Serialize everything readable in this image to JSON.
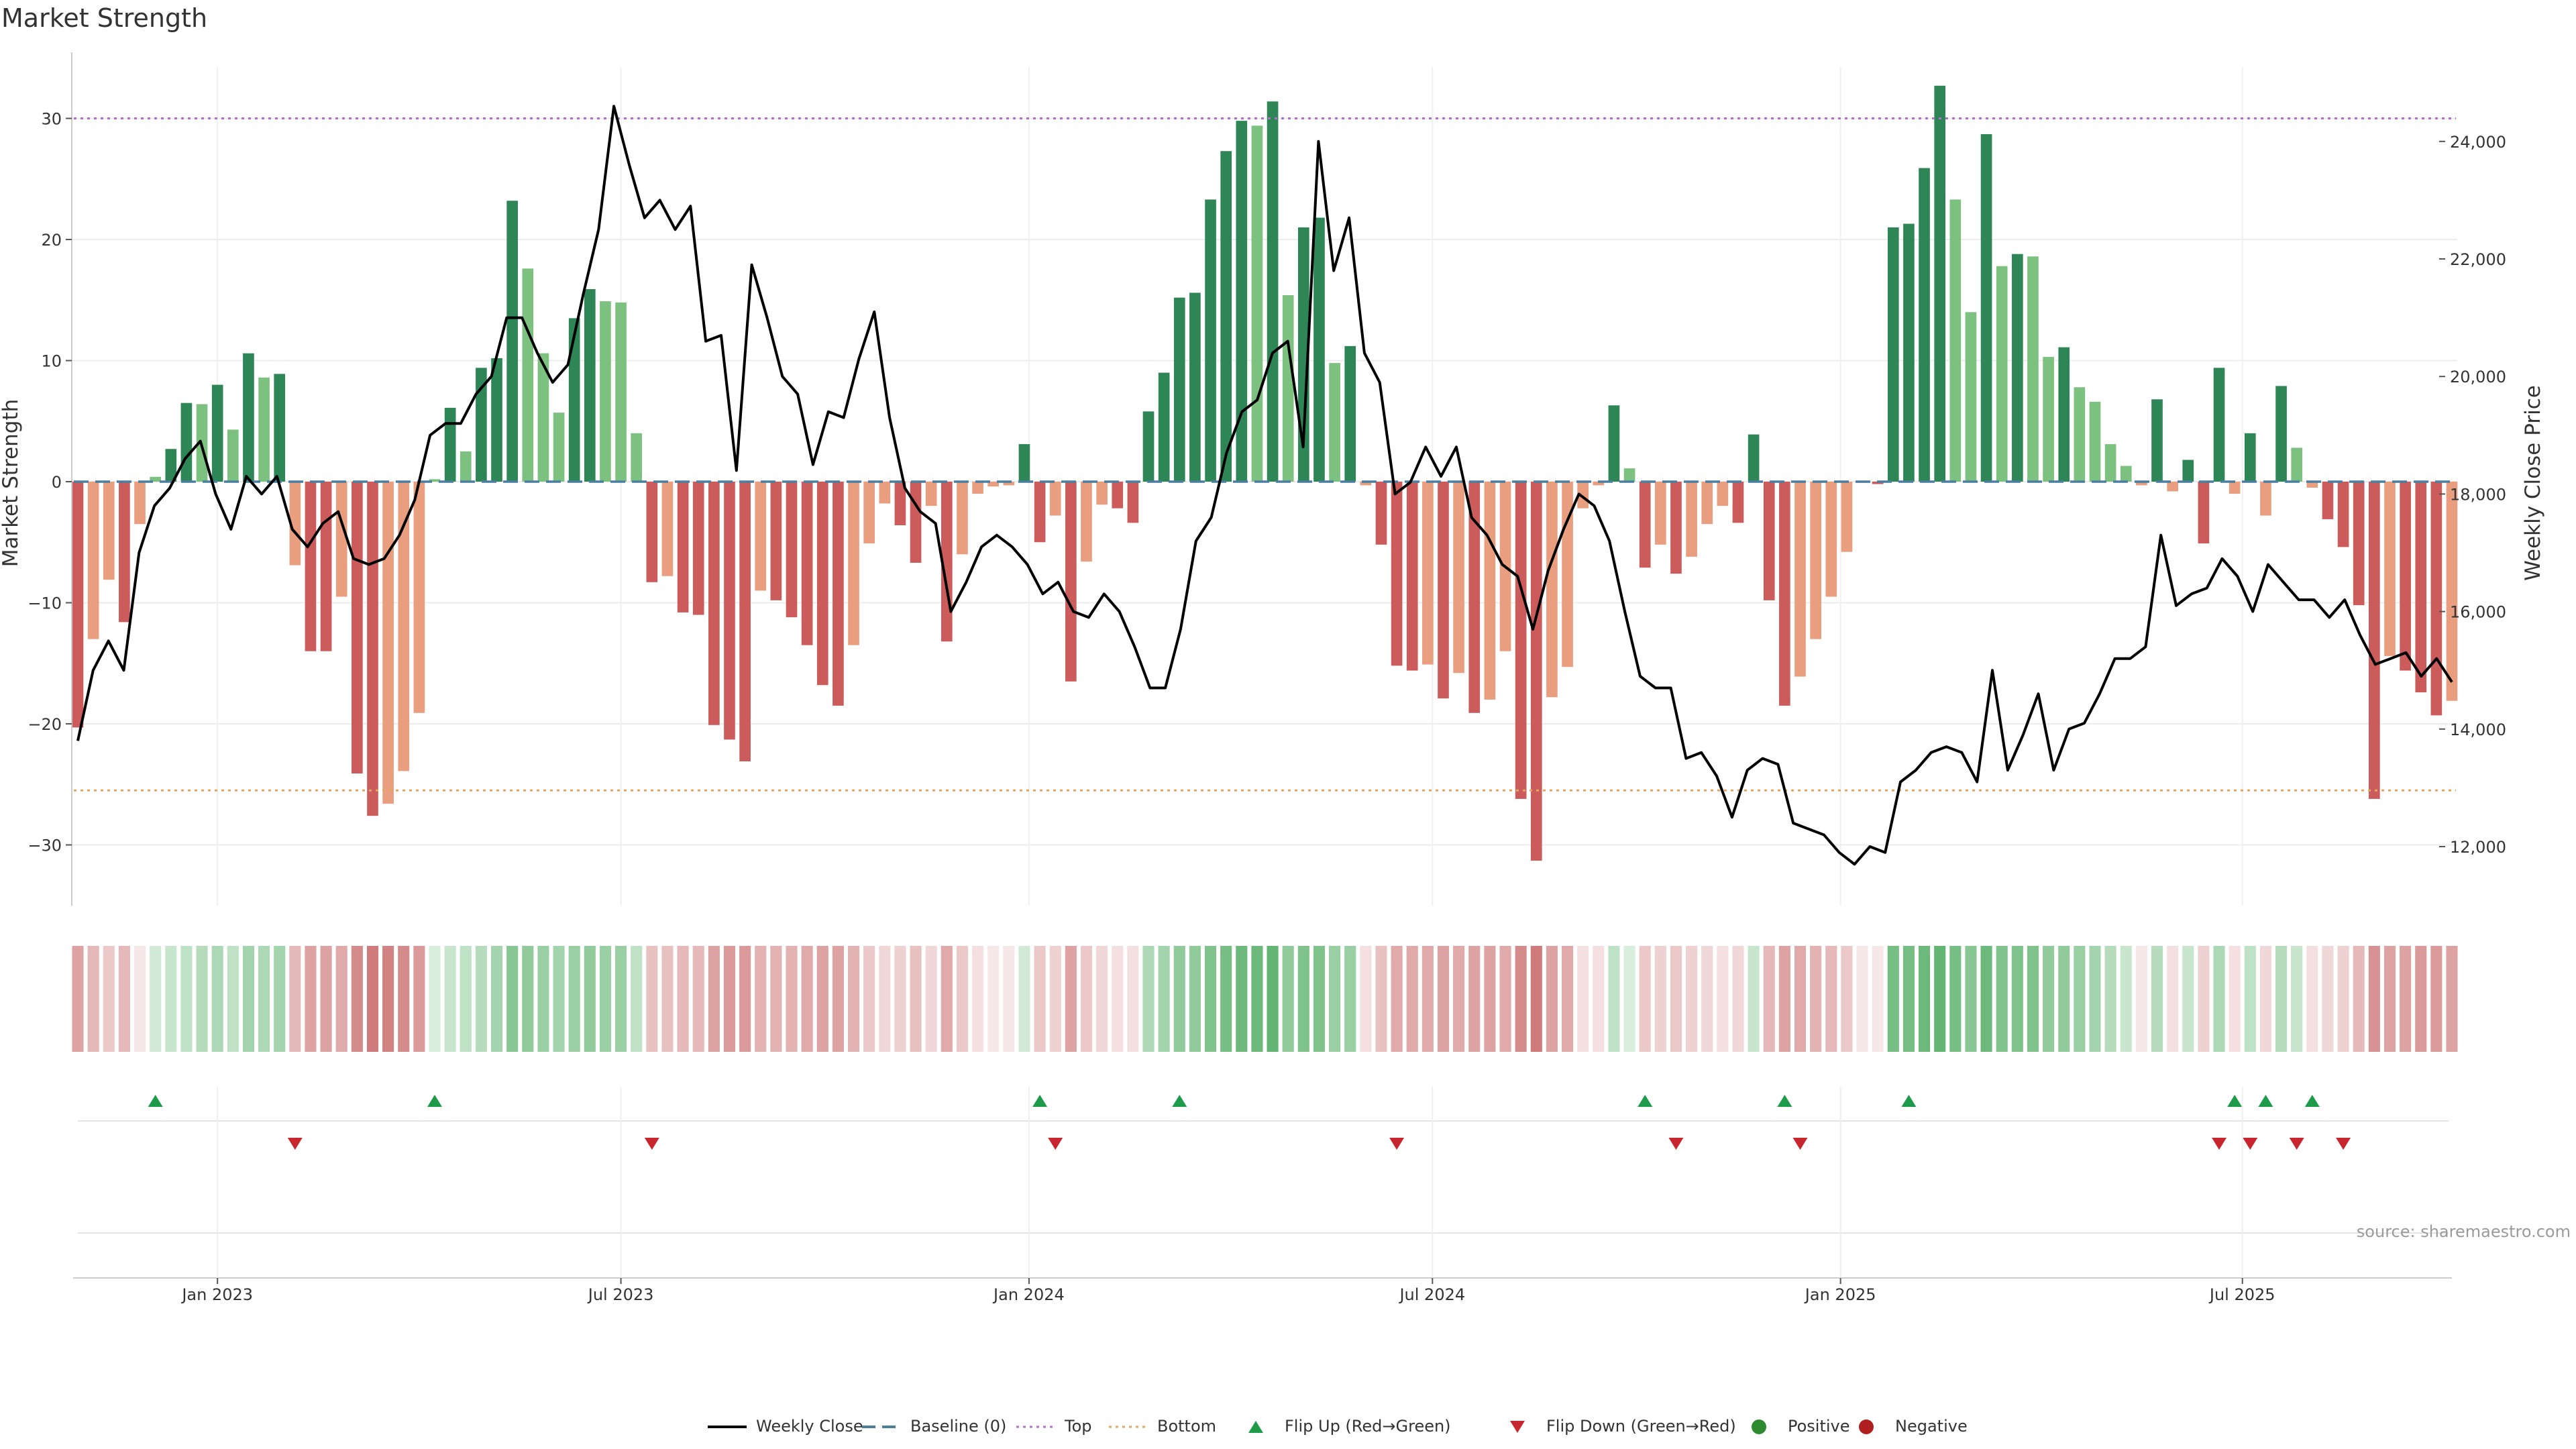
{
  "chart_data": {
    "type": "bar",
    "title": "Market Strength",
    "ylabel_left": "Market Strength",
    "ylabel_right": "Weekly Close Price",
    "source": "source: sharemaestro.com",
    "left_ylim": [
      -35,
      35
    ],
    "left_ticks": [
      30,
      20,
      10,
      0,
      -10,
      -20,
      -30
    ],
    "left_tick_labels": [
      "30",
      "20",
      "10",
      "0",
      "−10",
      "−20",
      "−30"
    ],
    "right_ylim": [
      11000,
      25000
    ],
    "right_ticks": [
      12000,
      14000,
      16000,
      18000,
      20000,
      22000,
      24000
    ],
    "right_tick_labels": [
      "12,000",
      "14,000",
      "16,000",
      "18,000",
      "20,000",
      "22,000",
      "24,000"
    ],
    "top_level": 30,
    "bottom_level": -25.5,
    "x_ticks": [
      {
        "label": "Jan 2023",
        "week": 9
      },
      {
        "label": "Jul 2023",
        "week": 35
      },
      {
        "label": "Jan 2024",
        "week": 61.3
      },
      {
        "label": "Jul 2024",
        "week": 87.3
      },
      {
        "label": "Jan 2025",
        "week": 113.6
      },
      {
        "label": "Jul 2025",
        "week": 139.5
      }
    ],
    "strength": [
      -20.3,
      -13,
      -8.1,
      -11.6,
      -3.5,
      0.4,
      2.7,
      6.5,
      6.4,
      8,
      4.3,
      10.6,
      8.6,
      8.9,
      -6.9,
      -14,
      -14,
      -9.5,
      -24.1,
      -27.6,
      -26.6,
      -23.9,
      -19.1,
      0.2,
      6.1,
      2.5,
      9.4,
      10.2,
      23.2,
      17.6,
      10.6,
      5.7,
      13.5,
      15.9,
      14.9,
      14.8,
      4,
      -8.3,
      -7.8,
      -10.8,
      -11,
      -20.1,
      -21.3,
      -23.1,
      -9,
      -9.8,
      -11.2,
      -13.5,
      -16.8,
      -18.5,
      -13.5,
      -5.1,
      -1.8,
      -3.6,
      -6.7,
      -2,
      -13.2,
      -6,
      -1,
      -0.4,
      -0.3,
      3.1,
      -5,
      -2.8,
      -16.5,
      -6.6,
      -1.9,
      -2.2,
      -3.4,
      5.8,
      9,
      15.2,
      15.6,
      23.3,
      27.3,
      29.8,
      29.4,
      31.4,
      15.4,
      21,
      21.8,
      9.8,
      11.2,
      -0.3,
      -5.2,
      -15.2,
      -15.6,
      -15.1,
      -17.9,
      -15.8,
      -19.1,
      -18,
      -14,
      -26.2,
      -31.3,
      -17.8,
      -15.3,
      -2.2,
      -0.3,
      6.3,
      1.1,
      -7.1,
      -5.2,
      -7.6,
      -6.2,
      -3.5,
      -2,
      -3.4,
      3.9,
      -9.8,
      -18.5,
      -16.1,
      -13,
      -9.5,
      -5.8,
      -0.1,
      -0.2,
      21,
      21.3,
      25.9,
      32.7,
      23.3,
      14,
      28.7,
      17.8,
      18.8,
      18.6,
      10.3,
      11.1,
      7.8,
      6.6,
      3.1,
      1.3,
      -0.3,
      6.8,
      -0.8,
      1.8,
      -5.1,
      9.4,
      -1,
      4,
      -2.8,
      7.9,
      2.8,
      -0.5,
      -3.1,
      -5.4,
      -10.2,
      -26.2,
      -14.4,
      -15.6,
      -17.4,
      -19.3,
      -18.1
    ],
    "weekly_close": [
      13800,
      15000,
      15500,
      15000,
      17000,
      17800,
      18100,
      18600,
      18900,
      18000,
      17400,
      18300,
      18000,
      18300,
      17400,
      17100,
      17500,
      17700,
      16900,
      16800,
      16900,
      17300,
      17900,
      19000,
      19200,
      19200,
      19700,
      20000,
      21000,
      21000,
      20400,
      19900,
      20200,
      21400,
      22500,
      24600,
      23600,
      22700,
      23000,
      22500,
      22900,
      20600,
      20700,
      18400,
      21900,
      21000,
      20000,
      19700,
      18500,
      19400,
      19300,
      20300,
      21100,
      19300,
      18100,
      17700,
      17500,
      16000,
      16500,
      17100,
      17300,
      17100,
      16800,
      16300,
      16500,
      16000,
      15900,
      16300,
      16000,
      15400,
      14700,
      14700,
      15700,
      17200,
      17600,
      18700,
      19400,
      19600,
      20400,
      20600,
      18800,
      24000,
      21800,
      22700,
      20400,
      19900,
      18000,
      18200,
      18800,
      18300,
      18800,
      17600,
      17300,
      16800,
      16600,
      15700,
      16700,
      17400,
      18000,
      17800,
      17200,
      16000,
      14900,
      14700,
      14700,
      13500,
      13600,
      13200,
      12500,
      13300,
      13500,
      13400,
      12400,
      12300,
      12200,
      11900,
      11700,
      12000,
      11900,
      13100,
      13300,
      13600,
      13700,
      13600,
      13100,
      15000,
      13300,
      13900,
      14600,
      13300,
      14000,
      14100,
      14600,
      15200,
      15200,
      15400,
      17300,
      16100,
      16300,
      16400,
      16900,
      16600,
      16000,
      16800,
      16500,
      16200,
      16200,
      15900,
      16200,
      15600,
      15100,
      15200,
      15300,
      14900,
      15200,
      14800
    ],
    "heat_strip": [
      -0.6,
      -0.45,
      -0.35,
      -0.45,
      -0.15,
      0.25,
      0.3,
      0.35,
      0.4,
      0.45,
      0.35,
      0.5,
      0.45,
      0.5,
      -0.45,
      -0.6,
      -0.6,
      -0.55,
      -0.75,
      -0.85,
      -0.8,
      -0.75,
      -0.65,
      0.2,
      0.3,
      0.35,
      0.4,
      0.5,
      0.65,
      0.6,
      0.55,
      0.5,
      0.55,
      0.6,
      0.55,
      0.55,
      0.35,
      -0.4,
      -0.4,
      -0.45,
      -0.45,
      -0.6,
      -0.65,
      -0.65,
      -0.5,
      -0.5,
      -0.5,
      -0.55,
      -0.6,
      -0.6,
      -0.5,
      -0.35,
      -0.25,
      -0.3,
      -0.4,
      -0.25,
      -0.55,
      -0.35,
      -0.2,
      -0.15,
      -0.15,
      0.25,
      -0.35,
      -0.3,
      -0.6,
      -0.35,
      -0.25,
      -0.2,
      -0.2,
      0.45,
      0.5,
      0.6,
      0.6,
      0.7,
      0.75,
      0.8,
      0.8,
      0.85,
      0.6,
      0.7,
      0.7,
      0.55,
      0.55,
      -0.2,
      -0.4,
      -0.55,
      -0.55,
      -0.55,
      -0.6,
      -0.55,
      -0.6,
      -0.6,
      -0.55,
      -0.75,
      -0.85,
      -0.6,
      -0.55,
      -0.2,
      -0.2,
      0.35,
      0.2,
      -0.35,
      -0.3,
      -0.35,
      -0.3,
      -0.25,
      -0.2,
      -0.25,
      0.3,
      -0.45,
      -0.6,
      -0.55,
      -0.5,
      -0.45,
      -0.35,
      -0.15,
      -0.15,
      0.75,
      0.75,
      0.8,
      0.85,
      0.75,
      0.65,
      0.8,
      0.7,
      0.7,
      0.7,
      0.6,
      0.6,
      0.55,
      0.5,
      0.4,
      0.3,
      -0.15,
      0.4,
      -0.2,
      0.3,
      -0.3,
      0.45,
      -0.2,
      0.35,
      -0.25,
      0.4,
      0.3,
      -0.2,
      -0.25,
      -0.3,
      -0.45,
      -0.7,
      -0.6,
      -0.6,
      -0.65,
      -0.65,
      -0.6
    ],
    "flip_up_weeks": [
      5,
      23,
      62,
      71,
      101,
      110,
      118,
      139,
      141,
      144
    ],
    "flip_down_weeks": [
      14,
      37,
      63,
      85,
      103,
      111,
      138,
      140,
      143,
      146
    ],
    "colors": {
      "strong_green": "#2e8656",
      "light_green": "#7cc17f",
      "strong_red": "#cc5c5c",
      "light_red": "#e89e7f",
      "line": "#000000",
      "baseline": "#4a7fa0",
      "top": "#b070c8",
      "bottom": "#e0a860",
      "flip_up": "#1e9a4b",
      "flip_down": "#c8262e",
      "positive": "#2e8a2e",
      "negative": "#b02020"
    },
    "legend": [
      {
        "label": "Weekly Close",
        "kind": "line"
      },
      {
        "label": "Baseline (0)",
        "kind": "dash"
      },
      {
        "label": "Top",
        "kind": "dot-purple"
      },
      {
        "label": "Bottom",
        "kind": "dot-orange"
      },
      {
        "label": "Flip Up (Red→Green)",
        "kind": "tri-up"
      },
      {
        "label": "Flip Down (Green→Red)",
        "kind": "tri-down"
      },
      {
        "label": "Positive",
        "kind": "dot-green"
      },
      {
        "label": "Negative",
        "kind": "dot-red"
      }
    ]
  }
}
